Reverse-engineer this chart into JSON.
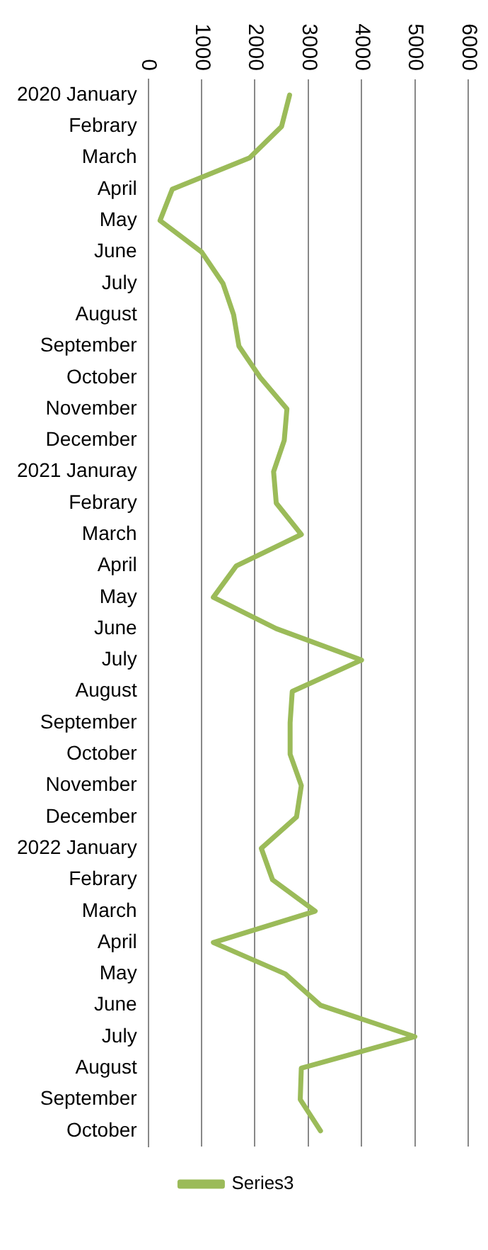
{
  "chart_data": {
    "type": "line",
    "orientation": "horizontal",
    "categories": [
      "2020 January",
      "Febrary",
      "March",
      "April",
      "May",
      "June",
      "July",
      "August",
      "September",
      "October",
      "November",
      "December",
      "2021 Januray",
      "Febrary",
      "March",
      "April",
      "May",
      "June",
      "July",
      "August",
      "September",
      "October",
      "November",
      "December",
      "2022 January",
      "Febrary",
      "March",
      "April",
      "May",
      "June",
      "July",
      "August",
      "September",
      "October"
    ],
    "series": [
      {
        "name": "Series3",
        "color": "#9bbb59",
        "values": [
          2650,
          2500,
          1900,
          450,
          220,
          1000,
          1400,
          1600,
          1700,
          2100,
          2600,
          2550,
          2350,
          2400,
          2870,
          1650,
          1220,
          2400,
          4000,
          2700,
          2660,
          2660,
          2870,
          2780,
          2120,
          2330,
          3130,
          1220,
          2570,
          3230,
          5000,
          2870,
          2850,
          3230
        ]
      }
    ],
    "xlim": [
      0,
      6000
    ],
    "xticks": [
      0,
      1000,
      2000,
      3000,
      4000,
      5000,
      6000
    ],
    "grid": "x",
    "legend": "bottom",
    "marker": "none",
    "line_style": "solid"
  }
}
